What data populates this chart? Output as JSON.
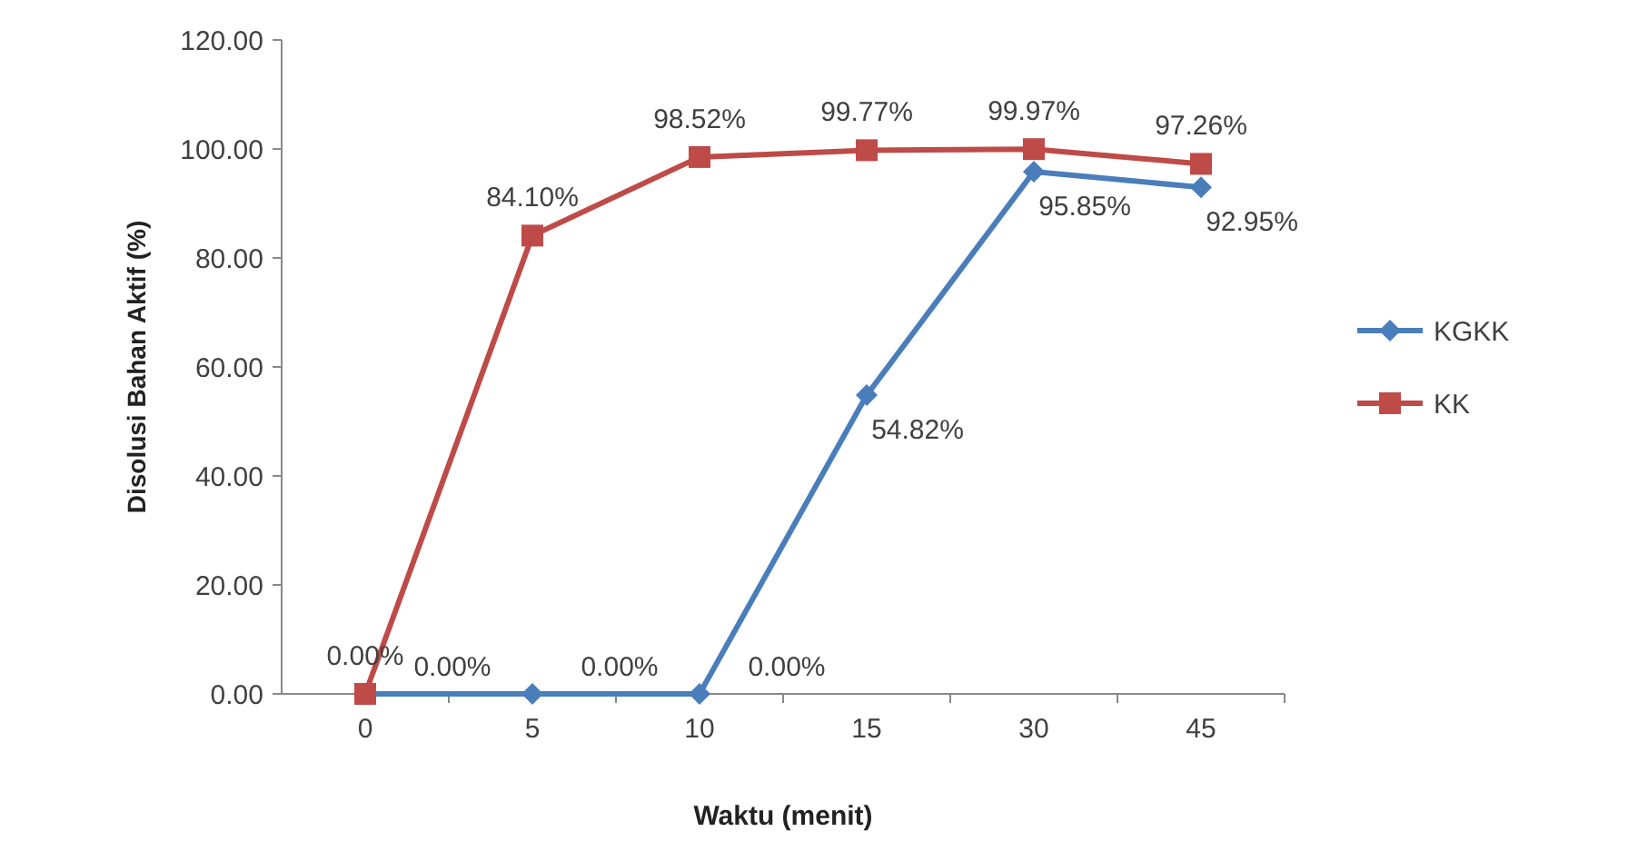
{
  "chart_data": {
    "type": "line",
    "xlabel": "Waktu (menit)",
    "ylabel": "Disolusi Bahan Aktif (%)",
    "categories": [
      "0",
      "5",
      "10",
      "15",
      "30",
      "45"
    ],
    "series": [
      {
        "name": "KGKK",
        "color": "#4a7ebb",
        "marker": "diamond",
        "values": [
          0,
          0,
          0,
          54.82,
          95.85,
          92.95
        ],
        "value_labels": [
          "0.00%",
          "0.00%",
          "0.00%",
          "54.82%",
          "95.85%",
          "92.95%"
        ]
      },
      {
        "name": "KK",
        "color": "#be4b48",
        "marker": "square",
        "values": [
          0,
          84.1,
          98.52,
          99.77,
          99.97,
          97.26
        ],
        "value_labels": [
          "0.00%",
          "84.10%",
          "98.52%",
          "99.77%",
          "99.97%",
          "97.26%"
        ]
      }
    ],
    "ylim": [
      0,
      120
    ],
    "yticks": [
      {
        "value": 0,
        "label": "0.00"
      },
      {
        "value": 20,
        "label": "20.00"
      },
      {
        "value": 40,
        "label": "40.00"
      },
      {
        "value": 60,
        "label": "60.00"
      },
      {
        "value": 80,
        "label": "80.00"
      },
      {
        "value": 100,
        "label": "100.00"
      },
      {
        "value": 120,
        "label": "120.00"
      }
    ],
    "grid": false,
    "legend": "right"
  }
}
